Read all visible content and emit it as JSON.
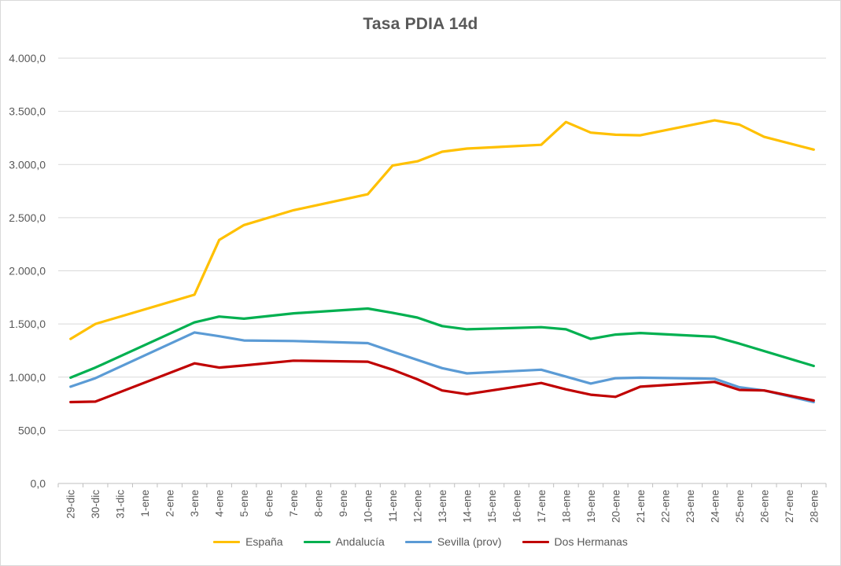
{
  "chart_data": {
    "type": "line",
    "title": "Tasa PDIA 14d",
    "xlabel": "",
    "ylabel": "",
    "ylim": [
      0,
      4000
    ],
    "y_ticks": [
      "0,0",
      "500,0",
      "1.000,0",
      "1.500,0",
      "2.000,0",
      "2.500,0",
      "3.000,0",
      "3.500,0",
      "4.000,0"
    ],
    "y_tick_values": [
      0,
      500,
      1000,
      1500,
      2000,
      2500,
      3000,
      3500,
      4000
    ],
    "grid": "horizontal",
    "legend_position": "bottom",
    "categories": [
      "29-dic",
      "30-dic",
      "31-dic",
      "1-ene",
      "2-ene",
      "3-ene",
      "4-ene",
      "5-ene",
      "6-ene",
      "7-ene",
      "8-ene",
      "9-ene",
      "10-ene",
      "11-ene",
      "12-ene",
      "13-ene",
      "14-ene",
      "15-ene",
      "16-ene",
      "17-ene",
      "18-ene",
      "19-ene",
      "20-ene",
      "21-ene",
      "22-ene",
      "23-ene",
      "24-ene",
      "25-ene",
      "26-ene",
      "27-ene",
      "28-ene"
    ],
    "series": [
      {
        "name": "España",
        "color": "#FFC000",
        "values": [
          1360,
          1500,
          null,
          null,
          null,
          1775,
          2290,
          2430,
          null,
          2570,
          null,
          null,
          2720,
          2990,
          3030,
          3120,
          3150,
          null,
          null,
          3185,
          3400,
          3300,
          3280,
          3275,
          null,
          null,
          3415,
          3375,
          3260,
          null,
          3140
        ]
      },
      {
        "name": "Andalucía",
        "color": "#00B050",
        "values": [
          995,
          1090,
          null,
          null,
          null,
          1515,
          1570,
          1550,
          null,
          1600,
          null,
          null,
          1645,
          1605,
          1560,
          1480,
          1450,
          null,
          null,
          1470,
          1450,
          1360,
          1400,
          1415,
          null,
          null,
          1380,
          1315,
          null,
          null,
          1105
        ]
      },
      {
        "name": "Sevilla (prov)",
        "color": "#5B9BD5",
        "values": [
          910,
          990,
          null,
          null,
          null,
          1420,
          1385,
          1345,
          null,
          1340,
          null,
          null,
          1320,
          1240,
          null,
          1085,
          1035,
          null,
          null,
          1070,
          1005,
          940,
          990,
          995,
          null,
          null,
          985,
          905,
          875,
          null,
          765
        ]
      },
      {
        "name": "Dos Hermanas",
        "color": "#C00000",
        "values": [
          765,
          770,
          null,
          null,
          null,
          1130,
          1090,
          1110,
          null,
          1155,
          null,
          null,
          1145,
          1070,
          980,
          875,
          840,
          null,
          null,
          945,
          885,
          835,
          815,
          910,
          null,
          null,
          955,
          880,
          875,
          null,
          780
        ]
      }
    ]
  }
}
